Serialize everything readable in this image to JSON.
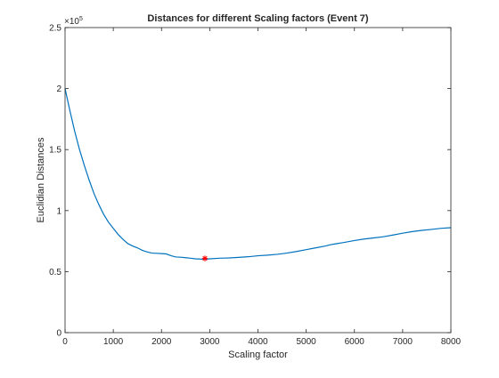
{
  "chart_data": {
    "type": "line",
    "title": "Distances for different Scaling factors (Event 7)",
    "xlabel": "Scaling factor",
    "ylabel": "Euclidian Distances",
    "xlim": [
      0,
      8000
    ],
    "ylim": [
      0,
      250000
    ],
    "xticks": [
      0,
      1000,
      2000,
      3000,
      4000,
      5000,
      6000,
      7000,
      8000
    ],
    "xtick_labels": [
      "0",
      "1000",
      "2000",
      "3000",
      "4000",
      "5000",
      "6000",
      "7000",
      "8000"
    ],
    "yticks": [
      0,
      50000,
      100000,
      150000,
      200000,
      250000
    ],
    "ytick_labels": [
      "0",
      "0.5",
      "1",
      "1.5",
      "2",
      "2.5"
    ],
    "y_exponent_base": "×10",
    "y_exponent_power": "5",
    "grid": false,
    "series": [
      {
        "color": "#0072BD",
        "x": [
          0,
          100,
          200,
          300,
          400,
          500,
          600,
          700,
          800,
          900,
          1000,
          1100,
          1200,
          1300,
          1400,
          1500,
          1600,
          1700,
          1800,
          1900,
          2000,
          2100,
          2200,
          2300,
          2400,
          2500,
          2600,
          2700,
          2800,
          2900,
          3000,
          3200,
          3400,
          3600,
          3800,
          4000,
          4200,
          4400,
          4600,
          4800,
          5000,
          5200,
          5400,
          5500,
          5600,
          5800,
          6000,
          6200,
          6400,
          6600,
          6800,
          7000,
          7200,
          7400,
          7600,
          7800,
          8000
        ],
        "y": [
          200000,
          182000,
          165000,
          150000,
          137000,
          125000,
          114000,
          105000,
          97000,
          90500,
          85500,
          80500,
          76500,
          73000,
          71000,
          69500,
          67500,
          66200,
          65200,
          65000,
          64800,
          64500,
          63000,
          62000,
          61800,
          61400,
          61000,
          60500,
          60300,
          60200,
          60500,
          61000,
          61200,
          61700,
          62200,
          63000,
          63500,
          64200,
          65200,
          66500,
          68000,
          69500,
          71000,
          72000,
          72700,
          74000,
          75500,
          76700,
          77600,
          78600,
          80000,
          81500,
          82800,
          83800,
          84600,
          85500,
          86000
        ]
      }
    ],
    "marker": {
      "x": 2900,
      "y": 60800,
      "symbol": "*",
      "color": "#FF0000"
    }
  }
}
